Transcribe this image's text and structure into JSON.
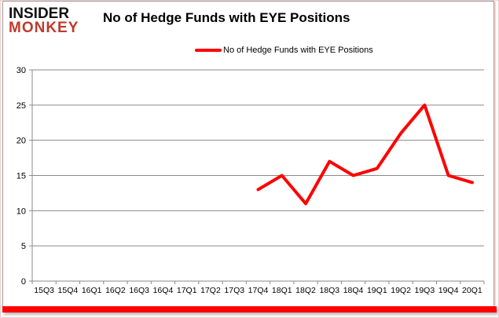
{
  "logo": {
    "line1": "INSIDER",
    "line2": "MONKEY",
    "line1_color": "#111111",
    "line2_color": "#c0392b"
  },
  "header": {
    "title": "No of Hedge Funds with EYE Positions"
  },
  "legend": {
    "label": "No of Hedge Funds with EYE Positions",
    "line_color": "#ff0000"
  },
  "frame": {
    "accent_bar_color": "#ff0000",
    "border_color": "#9d9d9d",
    "outer_border_color": "#f3cdcd"
  },
  "chart_data": {
    "type": "line",
    "title": "No of Hedge Funds with EYE Positions",
    "xlabel": "",
    "ylabel": "",
    "categories": [
      "15Q3",
      "15Q4",
      "16Q1",
      "16Q2",
      "16Q3",
      "16Q4",
      "17Q1",
      "17Q2",
      "17Q3",
      "17Q4",
      "18Q1",
      "18Q2",
      "18Q3",
      "18Q4",
      "19Q1",
      "19Q2",
      "19Q3",
      "19Q4",
      "20Q1"
    ],
    "series": [
      {
        "name": "No of Hedge Funds with EYE Positions",
        "color": "#ff0000",
        "values": [
          null,
          null,
          null,
          null,
          null,
          null,
          null,
          null,
          null,
          13,
          15,
          11,
          17,
          15,
          16,
          21,
          25,
          15,
          14
        ]
      }
    ],
    "ylim": [
      0,
      30
    ],
    "yticks": [
      0,
      5,
      10,
      15,
      20,
      25,
      30
    ],
    "grid": true,
    "grid_color": "#8a8a8a",
    "axis_color": "#8a8a8a",
    "tick_label_color": "#000000",
    "legend_position": "top"
  }
}
